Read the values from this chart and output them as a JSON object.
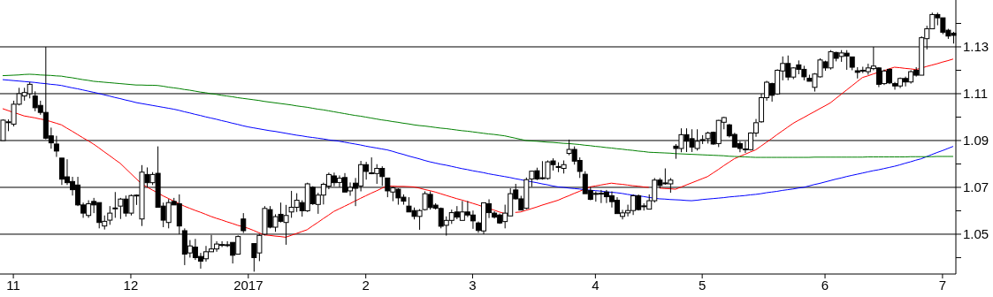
{
  "chart_data": {
    "type": "candlestick",
    "categories": [
      null,
      null,
      "11",
      null,
      null,
      null,
      null,
      null,
      null,
      null,
      null,
      null,
      null,
      null,
      null,
      null,
      null,
      null,
      null,
      null,
      null,
      null,
      null,
      null,
      "12",
      null,
      null,
      null,
      null,
      null,
      null,
      null,
      null,
      null,
      null,
      null,
      null,
      null,
      null,
      null,
      null,
      null,
      null,
      null,
      null,
      null,
      "2017",
      null,
      null,
      null,
      null,
      null,
      null,
      null,
      null,
      null,
      null,
      null,
      null,
      null,
      null,
      null,
      null,
      null,
      null,
      null,
      null,
      null,
      "2",
      null,
      null,
      null,
      null,
      null,
      null,
      null,
      null,
      null,
      null,
      null,
      null,
      null,
      null,
      null,
      null,
      null,
      null,
      null,
      "3",
      null,
      null,
      null,
      null,
      null,
      null,
      null,
      null,
      null,
      null,
      null,
      null,
      null,
      null,
      null,
      null,
      null,
      null,
      null,
      null,
      null,
      null,
      "4",
      null,
      null,
      null,
      null,
      null,
      null,
      null,
      null,
      null,
      null,
      null,
      null,
      null,
      null,
      null,
      null,
      null,
      null,
      null,
      "5",
      null,
      null,
      null,
      null,
      null,
      null,
      null,
      null,
      null,
      null,
      null,
      null,
      null,
      null,
      null,
      null,
      null,
      null,
      null,
      null,
      null,
      null,
      "6",
      null,
      null,
      null,
      null,
      null,
      null,
      null,
      null,
      null,
      null,
      null,
      null,
      null,
      null,
      null,
      null,
      null,
      null,
      null,
      null,
      null,
      "7",
      null,
      null
    ],
    "ohlc": [
      [
        1.09,
        1.099,
        1.09,
        1.0987
      ],
      [
        1.098,
        1.099,
        1.094,
        1.098
      ],
      [
        1.097,
        1.107,
        1.096,
        1.1055
      ],
      [
        1.1055,
        1.1125,
        1.105,
        1.11
      ],
      [
        1.109,
        1.1125,
        1.107,
        1.1105
      ],
      [
        1.11,
        1.115,
        1.108,
        1.114
      ],
      [
        1.109,
        1.111,
        1.1025,
        1.104
      ],
      [
        1.105,
        1.107,
        1.101,
        1.102
      ],
      [
        1.102,
        1.13,
        1.0905,
        1.091
      ],
      [
        1.092,
        1.0955,
        1.0865,
        1.089
      ],
      [
        1.0885,
        1.092,
        1.083,
        1.0855
      ],
      [
        1.0825,
        1.0825,
        1.071,
        1.0735
      ],
      [
        1.0745,
        1.082,
        1.071,
        1.072
      ],
      [
        1.0725,
        1.0745,
        1.0665,
        1.069
      ],
      [
        1.071,
        1.0745,
        1.062,
        1.0625
      ],
      [
        1.0625,
        1.0635,
        1.057,
        1.059
      ],
      [
        1.058,
        1.0645,
        1.057,
        1.063
      ],
      [
        1.064,
        1.0655,
        1.059,
        1.0625
      ],
      [
        1.0635,
        1.0635,
        1.0525,
        1.055
      ],
      [
        1.0535,
        1.058,
        1.052,
        1.0555
      ],
      [
        1.056,
        1.062,
        1.054,
        1.059
      ],
      [
        1.061,
        1.068,
        1.057,
        1.0612
      ],
      [
        1.062,
        1.0655,
        1.0565,
        1.065
      ],
      [
        1.065,
        1.0665,
        1.0575,
        1.059
      ],
      [
        1.059,
        1.067,
        1.058,
        1.0665
      ],
      [
        1.0665,
        1.067,
        1.0625,
        1.0667
      ],
      [
        1.0565,
        1.0795,
        1.0535,
        1.0765
      ],
      [
        1.0755,
        1.0785,
        1.07,
        1.072
      ],
      [
        1.072,
        1.0765,
        1.071,
        1.0755
      ],
      [
        1.076,
        1.0875,
        1.0615,
        1.0615
      ],
      [
        1.062,
        1.0635,
        1.053,
        1.056
      ],
      [
        1.055,
        1.065,
        1.0525,
        1.0635
      ],
      [
        1.064,
        1.0655,
        1.0625,
        1.0625
      ],
      [
        1.063,
        1.067,
        1.05,
        1.0535
      ],
      [
        1.0515,
        1.0525,
        1.0368,
        1.0415
      ],
      [
        1.042,
        1.0475,
        1.04,
        1.045
      ],
      [
        1.0445,
        1.048,
        1.039,
        1.04
      ],
      [
        1.0405,
        1.042,
        1.0353,
        1.0385
      ],
      [
        1.0395,
        1.045,
        1.0383,
        1.0425
      ],
      [
        1.0425,
        1.0497,
        1.0425,
        1.0437
      ],
      [
        1.0437,
        1.047,
        1.0425,
        1.0458
      ],
      [
        1.0455,
        1.047,
        1.0445,
        1.0456
      ],
      [
        1.0455,
        1.047,
        1.0445,
        1.0454
      ],
      [
        1.0465,
        1.0465,
        1.0375,
        1.041
      ],
      [
        1.0415,
        1.0495,
        1.0415,
        1.049
      ],
      [
        1.0565,
        1.059,
        1.0505,
        1.0515
      ],
      null,
      [
        1.046,
        1.046,
        1.034,
        1.04
      ],
      [
        1.042,
        1.05,
        1.0385,
        1.0495
      ],
      [
        1.05,
        1.062,
        1.0495,
        1.061
      ],
      [
        1.0605,
        1.062,
        1.0525,
        1.053
      ],
      [
        1.053,
        1.0585,
        1.051,
        1.0575
      ],
      [
        1.0585,
        1.0635,
        1.055,
        1.0555
      ],
      [
        1.055,
        1.0625,
        1.0455,
        1.058
      ],
      [
        1.0595,
        1.0685,
        1.057,
        1.0615
      ],
      [
        1.0615,
        1.0675,
        1.0595,
        1.0645
      ],
      [
        1.0635,
        1.0645,
        1.0575,
        1.06
      ],
      [
        1.06,
        1.072,
        1.0595,
        1.0715
      ],
      [
        1.07,
        1.0705,
        1.0625,
        1.063
      ],
      [
        1.0627,
        1.0677,
        1.0587,
        1.0667
      ],
      [
        1.0667,
        1.072,
        1.0627,
        1.0713
      ],
      [
        1.0705,
        1.0763,
        1.0692,
        1.0755
      ],
      [
        1.0749,
        1.0763,
        1.0705,
        1.072
      ],
      [
        1.0721,
        1.0751,
        1.0701,
        1.0739
      ],
      [
        1.0742,
        1.0761,
        1.068,
        1.068
      ],
      [
        1.0685,
        1.0721,
        1.0664,
        1.07
      ],
      [
        1.0718,
        1.074,
        1.062,
        1.0696
      ],
      [
        1.0706,
        1.0813,
        1.0683,
        1.0797
      ],
      [
        1.0797,
        1.0809,
        1.0733,
        1.0768
      ],
      [
        1.0762,
        1.0828,
        1.0756,
        1.0761
      ],
      [
        1.0759,
        1.0799,
        1.0715,
        1.0781
      ],
      [
        1.0781,
        1.079,
        1.0706,
        1.0746
      ],
      [
        1.074,
        1.074,
        1.0658,
        1.0685
      ],
      [
        1.068,
        1.0702,
        1.0641,
        1.0698
      ],
      [
        1.0692,
        1.0696,
        1.0626,
        1.0655
      ],
      [
        1.0658,
        1.067,
        1.0626,
        1.0641
      ],
      [
        1.062,
        1.0658,
        1.0595,
        1.0595
      ],
      [
        1.0601,
        1.0614,
        1.0563,
        1.0576
      ],
      [
        1.0576,
        1.0607,
        1.0519,
        1.0601
      ],
      [
        1.0605,
        1.0683,
        1.0601,
        1.0673
      ],
      [
        1.067,
        1.0683,
        1.0605,
        1.0614
      ],
      [
        1.0624,
        1.0632,
        1.0605,
        1.0611
      ],
      [
        1.061,
        1.0614,
        1.0525,
        1.0534
      ],
      [
        1.0538,
        1.0576,
        1.0494,
        1.0559
      ],
      [
        1.0559,
        1.0605,
        1.0544,
        1.0592
      ],
      [
        1.0595,
        1.062,
        1.0564,
        1.0573
      ],
      [
        1.0559,
        1.0642,
        1.0559,
        1.0595
      ],
      [
        1.0595,
        1.0642,
        1.0573,
        1.0582
      ],
      [
        1.0582,
        1.0601,
        1.0523,
        1.0557
      ],
      [
        1.0548,
        1.0554,
        1.0506,
        1.0516
      ],
      [
        1.0514,
        1.0634,
        1.05,
        1.0634
      ],
      [
        1.063,
        1.0649,
        1.0569,
        1.0592
      ],
      [
        1.059,
        1.0598,
        1.0567,
        1.0573
      ],
      [
        1.0582,
        1.0588,
        1.0544,
        1.0548
      ],
      [
        1.0554,
        1.0626,
        1.0525,
        1.059
      ],
      [
        1.0578,
        1.0696,
        1.0578,
        1.0673
      ],
      [
        1.0689,
        1.0715,
        1.0648,
        1.0651
      ],
      [
        1.0651,
        1.0664,
        1.0603,
        1.0603
      ],
      [
        1.0611,
        1.0742,
        1.0607,
        1.0733
      ],
      [
        1.0736,
        1.0771,
        1.0702,
        1.0769
      ],
      [
        1.0771,
        1.0784,
        1.0731,
        1.0736
      ],
      [
        1.0741,
        1.0812,
        1.0733,
        1.0739
      ],
      [
        1.0738,
        1.0815,
        1.0733,
        1.0809
      ],
      [
        1.0813,
        1.0824,
        1.0772,
        1.0797
      ],
      [
        1.0789,
        1.0807,
        1.0765,
        1.0787
      ],
      [
        1.0781,
        1.0815,
        1.0759,
        1.0797
      ],
      [
        1.0845,
        1.0904,
        1.0837,
        1.0862
      ],
      [
        1.0862,
        1.0875,
        1.0797,
        1.0812
      ],
      [
        1.0815,
        1.0828,
        1.074,
        1.0768
      ],
      [
        1.0756,
        1.0769,
        1.0673,
        1.0673
      ],
      [
        1.0686,
        1.0702,
        1.0645,
        1.0649
      ],
      [
        1.0674,
        1.0683,
        1.0639,
        1.0673
      ],
      [
        1.0675,
        1.0689,
        1.0633,
        1.0673
      ],
      [
        1.068,
        1.0689,
        1.0633,
        1.066
      ],
      [
        1.0664,
        1.0683,
        1.0614,
        1.0639
      ],
      [
        1.0645,
        1.0658,
        1.0588,
        1.0588
      ],
      [
        1.0576,
        1.0604,
        1.0563,
        1.0591
      ],
      [
        1.0591,
        1.0626,
        1.0576,
        1.0601
      ],
      [
        1.0601,
        1.067,
        1.0582,
        1.0664
      ],
      [
        1.0664,
        1.067,
        1.0601,
        1.0605
      ],
      [
        1.0621,
        1.0632,
        1.0601,
        1.062
      ],
      [
        1.0607,
        1.067,
        1.0607,
        1.0643
      ],
      [
        1.0643,
        1.074,
        1.0635,
        1.0731
      ],
      [
        1.0731,
        1.074,
        1.0696,
        1.0708
      ],
      [
        1.0719,
        1.0781,
        1.0711,
        1.0718
      ],
      [
        1.0715,
        1.074,
        1.0677,
        1.0731
      ],
      [
        1.0876,
        1.0885,
        1.0822,
        1.0866
      ],
      [
        1.0866,
        1.0952,
        1.085,
        1.0925
      ],
      [
        1.0925,
        1.0952,
        1.0851,
        1.0897
      ],
      [
        1.0908,
        1.0948,
        1.0851,
        1.0872
      ],
      [
        1.0866,
        1.0948,
        1.0857,
        1.0897
      ],
      [
        1.0903,
        1.0923,
        1.0885,
        1.0904
      ],
      [
        1.0908,
        1.0938,
        1.0887,
        1.0932
      ],
      [
        1.0935,
        1.0938,
        1.0882,
        1.0885
      ],
      [
        1.0887,
        1.0988,
        1.0872,
        1.0986
      ],
      [
        1.0978,
        1.1001,
        1.0948,
        1.0998
      ],
      [
        1.0967,
        1.0971,
        1.0913,
        1.092
      ],
      [
        1.0926,
        1.0933,
        1.0872,
        1.0872
      ],
      [
        1.0887,
        1.0897,
        1.085,
        1.0866
      ],
      [
        1.0864,
        1.0897,
        1.0847,
        1.0863
      ],
      [
        1.0861,
        1.0935,
        1.0857,
        1.0932
      ],
      [
        1.0932,
        1.0992,
        1.0916,
        1.0976
      ],
      [
        1.098,
        1.11,
        1.0976,
        1.1083
      ],
      [
        1.1083,
        1.1155,
        1.107,
        1.1149
      ],
      [
        1.1143,
        1.1147,
        1.1066,
        1.1093
      ],
      [
        1.1099,
        1.1204,
        1.1095,
        1.12
      ],
      [
        1.1197,
        1.1259,
        1.1157,
        1.1229
      ],
      [
        1.1229,
        1.1263,
        1.1157,
        1.1171
      ],
      [
        1.1171,
        1.1213,
        1.1162,
        1.121
      ],
      [
        1.1223,
        1.1242,
        1.1183,
        1.1204
      ],
      [
        1.1204,
        1.1219,
        1.1157,
        1.1172
      ],
      [
        1.1166,
        1.1181,
        1.1153,
        1.1153
      ],
      [
        1.1127,
        1.1188,
        1.1109,
        1.1184
      ],
      [
        1.1172,
        1.1251,
        1.1169,
        1.1244
      ],
      [
        1.1236,
        1.1241,
        1.1198,
        1.121
      ],
      [
        1.121,
        1.1286,
        1.1203,
        1.1279
      ],
      [
        1.1276,
        1.1279,
        1.1238,
        1.1251
      ],
      [
        1.1259,
        1.1286,
        1.1236,
        1.1274
      ],
      [
        1.1273,
        1.1286,
        1.1202,
        1.1261
      ],
      [
        1.1257,
        1.1257,
        1.12,
        1.1213
      ],
      [
        1.1198,
        1.1213,
        1.1165,
        1.1191
      ],
      [
        1.12,
        1.1215,
        1.1188,
        1.1199
      ],
      [
        1.1194,
        1.1228,
        1.1181,
        1.121
      ],
      [
        1.1207,
        1.13,
        1.12,
        1.1218
      ],
      [
        1.121,
        1.1213,
        1.1128,
        1.114
      ],
      [
        1.1143,
        1.1203,
        1.1137,
        1.1197
      ],
      [
        1.1204,
        1.1207,
        1.1141,
        1.1146
      ],
      [
        1.1143,
        1.115,
        1.1117,
        1.1133
      ],
      [
        1.1133,
        1.1169,
        1.1124,
        1.1165
      ],
      [
        1.1165,
        1.1173,
        1.1131,
        1.115
      ],
      [
        1.115,
        1.12,
        1.1143,
        1.1194
      ],
      [
        1.12,
        1.1213,
        1.1173,
        1.1179
      ],
      [
        1.1179,
        1.1345,
        1.1179,
        1.1339
      ],
      [
        1.1335,
        1.139,
        1.1289,
        1.1377
      ],
      [
        1.1377,
        1.1446,
        1.1377,
        1.1438
      ],
      [
        1.1438,
        1.1446,
        1.1392,
        1.1424
      ],
      [
        1.1424,
        1.1424,
        1.1354,
        1.1362
      ],
      [
        1.1371,
        1.1377,
        1.1334,
        1.1346
      ],
      [
        1.1358,
        1.1364,
        1.1314,
        1.1349
      ]
    ],
    "series": [
      {
        "type": "line",
        "color": "#ff0000",
        "values": [
          1.1036,
          1.1028,
          1.102,
          1.1013,
          1.1005,
          1.1001,
          1.0997,
          1.0992,
          1.0988,
          1.0981,
          1.0974,
          1.0967,
          1.0953,
          1.094,
          1.0926,
          1.0912,
          1.0899,
          1.0885,
          1.0869,
          1.0852,
          1.0836,
          1.0819,
          1.0803,
          1.0781,
          1.0759,
          1.0737,
          1.0715,
          1.0702,
          1.0689,
          1.0677,
          1.0664,
          1.0653,
          1.0642,
          1.0631,
          1.062,
          1.0611,
          1.0602,
          1.0594,
          1.0585,
          1.0576,
          1.0568,
          1.0561,
          1.0553,
          1.0546,
          1.0538,
          1.0532,
          1.0525,
          1.0516,
          1.0506,
          1.0497,
          1.0495,
          1.0492,
          1.049,
          1.0487,
          1.0495,
          1.0503,
          1.0511,
          1.0519,
          1.0535,
          1.055,
          1.0566,
          1.0581,
          1.0597,
          1.0608,
          1.0619,
          1.063,
          1.0642,
          1.0653,
          1.0664,
          1.0675,
          1.0685,
          1.0696,
          1.0706,
          1.0705,
          1.0704,
          1.0704,
          1.0703,
          1.0702,
          1.0697,
          1.0691,
          1.0686,
          1.068,
          1.0673,
          1.0666,
          1.0659,
          1.0652,
          1.0646,
          1.0639,
          1.0632,
          1.0625,
          1.0617,
          1.061,
          1.0603,
          1.0595,
          1.0588,
          null,
          1.0593,
          1.0595,
          1.0602,
          1.0609,
          1.0616,
          1.0624,
          1.0631,
          1.0638,
          1.0645,
          1.0655,
          1.0664,
          1.0674,
          1.0683,
          1.0693,
          1.0702,
          1.0706,
          1.071,
          1.0714,
          1.0718,
          1.0715,
          1.0713,
          1.071,
          1.0707,
          1.0705,
          1.0702,
          1.07,
          null,
          1.0697,
          1.0695,
          1.0694,
          1.0692,
          1.0701,
          1.071,
          1.0719,
          1.0728,
          1.0737,
          1.0746,
          1.0761,
          1.0776,
          1.0792,
          1.0807,
          1.0822,
          1.0832,
          1.0841,
          1.0851,
          1.086,
          1.0876,
          1.0892,
          1.0908,
          1.0925,
          1.0941,
          1.0957,
          1.0973,
          1.0986,
          1.0998,
          1.1011,
          1.1023,
          1.1036,
          1.1048,
          1.1061,
          1.1079,
          1.1097,
          1.1115,
          1.1133,
          1.1151,
          1.1169,
          1.1176,
          1.1184,
          1.1191,
          1.1198,
          1.1206,
          1.1213,
          1.1211,
          1.1208,
          1.1206,
          1.1203,
          1.1209,
          1.1216,
          1.1222,
          1.1228,
          1.1235,
          1.1241,
          1.1248
        ]
      },
      {
        "type": "line",
        "color": "#0000ff",
        "values": [
          1.116,
          1.1158,
          1.1156,
          1.1154,
          1.1152,
          1.115,
          1.1148,
          1.1145,
          1.1143,
          1.114,
          1.1138,
          1.1135,
          1.113,
          1.1125,
          1.1121,
          1.1116,
          1.1111,
          1.1106,
          1.1101,
          1.1095,
          1.109,
          1.1084,
          1.1079,
          1.1073,
          1.1068,
          1.1062,
          1.1058,
          1.1054,
          1.105,
          1.1046,
          1.1042,
          1.1038,
          1.1034,
          1.1029,
          1.1023,
          1.1018,
          1.1012,
          1.1007,
          1.1001,
          1.0996,
          1.0991,
          1.0985,
          1.098,
          1.0974,
          1.0969,
          1.0963,
          1.0958,
          1.0954,
          1.095,
          1.0946,
          1.0942,
          1.0939,
          1.0935,
          1.0931,
          1.0927,
          1.0923,
          1.092,
          1.0916,
          1.0913,
          1.091,
          1.0907,
          1.0903,
          1.09,
          1.0897,
          1.0893,
          1.0889,
          1.0885,
          1.0881,
          1.0876,
          1.0872,
          1.0868,
          1.0864,
          1.086,
          1.0854,
          1.0847,
          1.0841,
          1.0834,
          1.0828,
          1.0822,
          1.0815,
          1.0809,
          1.0804,
          1.0799,
          1.0795,
          1.079,
          1.0785,
          1.078,
          1.0776,
          1.0771,
          1.0767,
          1.0763,
          1.0758,
          1.0754,
          1.075,
          1.0746,
          1.0742,
          1.0737,
          1.0733,
          1.0728,
          1.0724,
          1.072,
          1.0715,
          1.0711,
          1.0706,
          1.0702,
          1.07,
          1.0697,
          1.0695,
          1.0693,
          1.069,
          1.0688,
          1.0686,
          1.0684,
          1.0681,
          1.0679,
          1.0677,
          1.0674,
          1.067,
          1.0667,
          1.0664,
          1.0661,
          1.0657,
          1.0654,
          1.0651,
          1.065,
          1.0648,
          1.0647,
          1.0646,
          1.0644,
          1.0643,
          1.0645,
          1.0648,
          1.065,
          1.0652,
          1.0654,
          1.0656,
          1.0659,
          1.0661,
          1.0663,
          1.0665,
          1.0668,
          1.067,
          1.0673,
          1.0677,
          1.068,
          1.0683,
          1.0687,
          1.069,
          1.0693,
          1.0697,
          1.07,
          1.0706,
          1.0712,
          1.0717,
          1.0723,
          1.0729,
          1.0735,
          1.074,
          1.0746,
          1.0751,
          1.0756,
          1.0761,
          1.0766,
          1.0771,
          1.0775,
          1.078,
          1.0785,
          1.079,
          1.0796,
          1.0803,
          1.0809,
          1.0816,
          1.0822,
          1.0831,
          1.084,
          1.0849,
          1.0857,
          1.0866,
          1.0875
        ]
      },
      {
        "type": "line",
        "color": "#008000",
        "values": [
          1.1177,
          1.1178,
          1.1179,
          1.118,
          1.1182,
          1.1183,
          1.1182,
          1.118,
          1.1179,
          1.1178,
          1.1176,
          1.1175,
          1.1171,
          1.1168,
          1.1164,
          1.116,
          1.1157,
          1.1153,
          1.1151,
          1.1149,
          1.1147,
          1.1145,
          1.1143,
          1.1141,
          1.1139,
          1.1137,
          1.1137,
          1.1136,
          1.1136,
          1.1135,
          1.1132,
          1.1128,
          1.1125,
          1.1122,
          1.1118,
          1.1115,
          1.1111,
          1.1107,
          1.1104,
          1.11,
          1.1097,
          1.1093,
          1.109,
          1.1087,
          1.1083,
          1.108,
          1.1077,
          1.1074,
          1.1071,
          1.1067,
          1.1064,
          1.1061,
          1.1058,
          1.1055,
          1.1052,
          1.1048,
          1.1045,
          1.1042,
          1.1038,
          1.1034,
          1.1031,
          1.1027,
          1.1023,
          1.1019,
          1.1015,
          1.1011,
          1.1007,
          1.1004,
          1.1,
          1.0996,
          1.0992,
          1.0988,
          1.0985,
          1.0981,
          1.0978,
          1.0974,
          1.0971,
          1.0967,
          1.0964,
          1.0962,
          1.0959,
          1.0956,
          1.0953,
          1.0951,
          1.0948,
          1.0945,
          1.0942,
          1.094,
          1.0937,
          1.0934,
          1.0931,
          1.0928,
          1.0926,
          1.0923,
          1.092,
          1.0915,
          1.091,
          1.0905,
          1.09,
          1.0898,
          1.0897,
          1.0895,
          1.0893,
          1.0892,
          1.089,
          1.0888,
          1.0887,
          1.0885,
          1.0883,
          1.088,
          1.0878,
          1.0875,
          1.0873,
          1.087,
          1.0868,
          1.0865,
          1.0863,
          1.086,
          1.0858,
          1.0855,
          1.0853,
          1.085,
          1.0849,
          1.0848,
          1.0847,
          1.0846,
          1.0844,
          1.0843,
          1.0842,
          1.0841,
          1.084,
          1.0839,
          1.0838,
          1.0837,
          1.0836,
          1.0835,
          1.0833,
          1.0832,
          1.0831,
          1.083,
          1.0829,
          1.0828,
          1.0828,
          1.0828,
          1.0828,
          1.0828,
          1.0828,
          1.0828,
          1.0828,
          1.0828,
          1.0828,
          1.0828,
          1.0829,
          1.0829,
          1.0829,
          1.0829,
          1.0829,
          1.0829,
          1.0829,
          1.0829,
          1.0829,
          1.0829,
          1.083,
          1.083,
          1.083,
          1.083,
          1.083,
          1.083,
          1.083,
          1.083,
          1.0831,
          1.0831,
          1.0831,
          1.0831,
          1.0831,
          1.0832,
          1.0832,
          1.0832,
          1.0832
        ]
      }
    ],
    "ylim": [
      1.033,
      1.15
    ],
    "yticks": [
      {
        "value": 1.04,
        "label": null
      },
      1.05,
      {
        "value": 1.06,
        "label": null
      },
      1.07,
      {
        "value": 1.08,
        "label": null
      },
      1.09,
      {
        "value": 1.1,
        "label": null
      },
      1.11,
      {
        "value": 1.12,
        "label": null
      },
      1.13,
      {
        "value": 1.14,
        "label": null
      }
    ],
    "grid": "y"
  }
}
